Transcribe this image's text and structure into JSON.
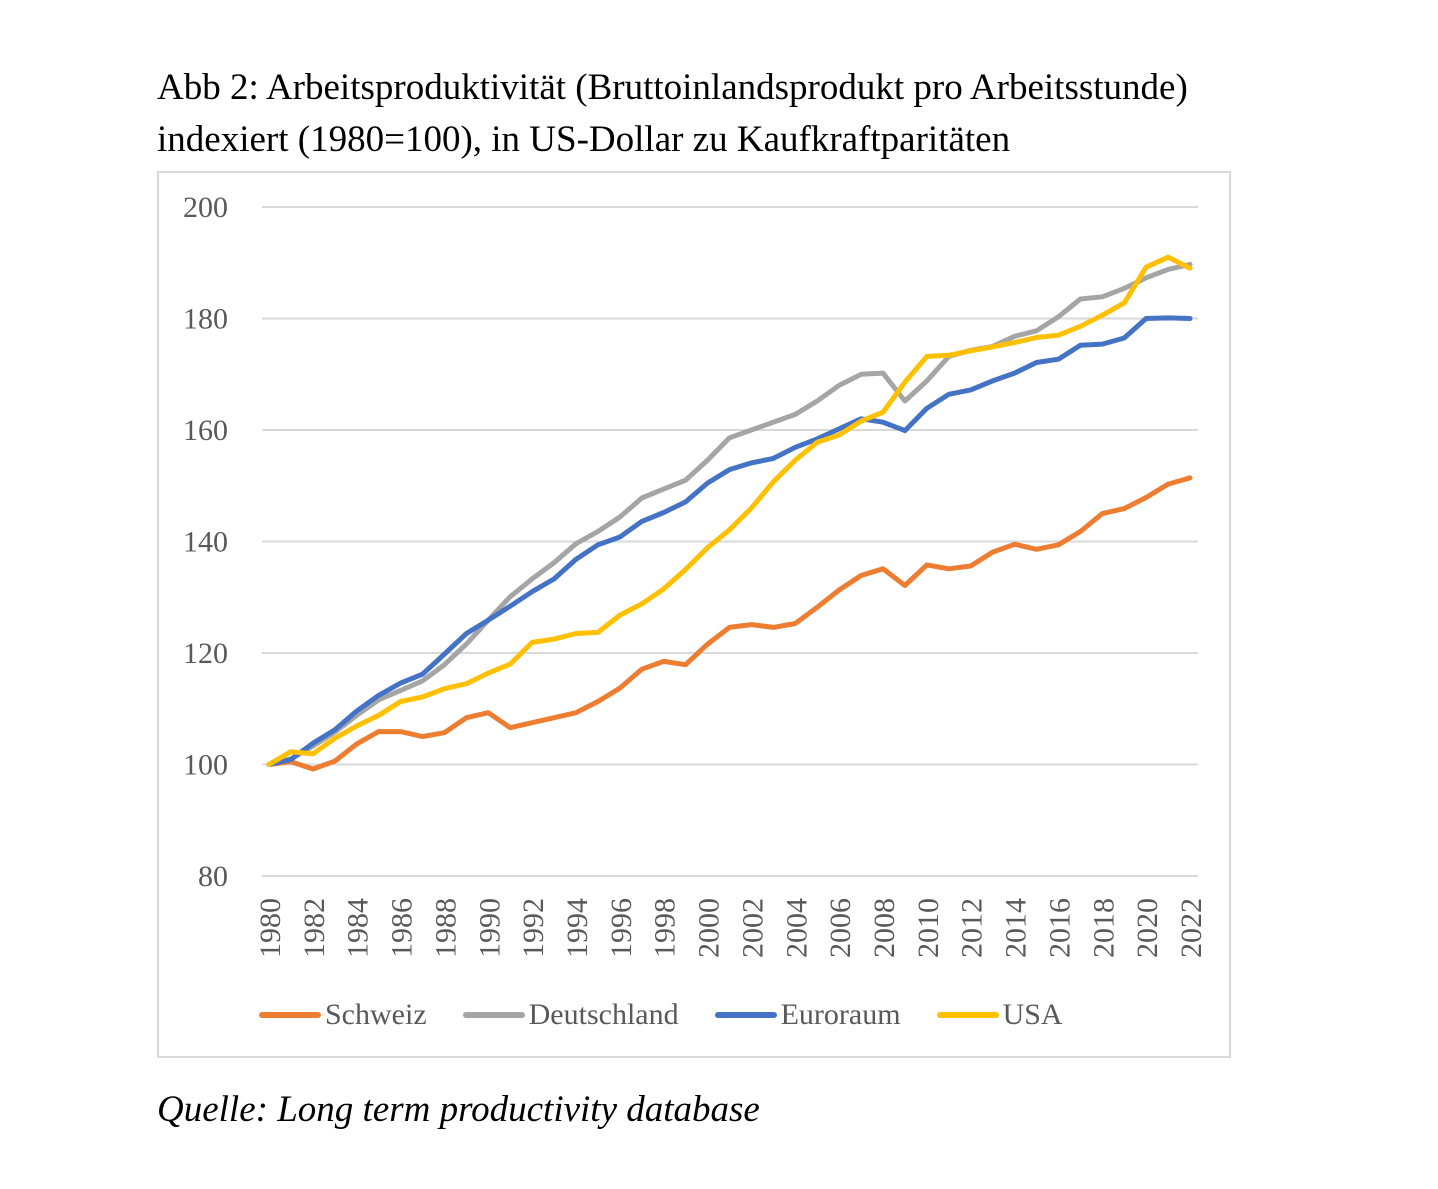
{
  "title_line1": "Abb 2: Arbeitsproduktivität (Bruttoinlandsprodukt pro Arbeitsstunde)",
  "title_line2": "indexiert (1980=100), in US-Dollar zu Kaufkraftparitäten",
  "source": "Quelle: Long term productivity database",
  "chart_data": {
    "type": "line",
    "title": "Abb 2: Arbeitsproduktivität (Bruttoinlandsprodukt pro Arbeitsstunde) indexiert (1980=100), in US-Dollar zu Kaufkraftparitäten",
    "xlabel": "",
    "ylabel": "",
    "ylim": [
      80,
      200
    ],
    "yticks": [
      80,
      100,
      120,
      140,
      160,
      180,
      200
    ],
    "grid": true,
    "legend_position": "bottom",
    "x": [
      1980,
      1981,
      1982,
      1983,
      1984,
      1985,
      1986,
      1987,
      1988,
      1989,
      1990,
      1991,
      1992,
      1993,
      1994,
      1995,
      1996,
      1997,
      1998,
      1999,
      2000,
      2001,
      2002,
      2003,
      2004,
      2005,
      2006,
      2007,
      2008,
      2009,
      2010,
      2011,
      2012,
      2013,
      2014,
      2015,
      2016,
      2017,
      2018,
      2019,
      2020,
      2021,
      2022
    ],
    "xtick_labels": [
      "1980",
      "1982",
      "1984",
      "1986",
      "1988",
      "1990",
      "1992",
      "1994",
      "1996",
      "1998",
      "2000",
      "2002",
      "2004",
      "2006",
      "2008",
      "2010",
      "2012",
      "2014",
      "2016",
      "2018",
      "2020",
      "2022"
    ],
    "series": [
      {
        "name": "Schweiz",
        "color": "#ED7D31",
        "values": [
          100,
          100.5,
          99.2,
          100.6,
          103.7,
          105.9,
          105.9,
          105.0,
          105.7,
          108.4,
          109.3,
          106.6,
          107.5,
          108.4,
          109.3,
          111.3,
          113.7,
          117.1,
          118.5,
          117.9,
          121.6,
          124.6,
          125.1,
          124.6,
          125.3,
          128.2,
          131.3,
          133.9,
          135.1,
          132.1,
          135.8,
          135.1,
          135.6,
          138.1,
          139.5,
          138.6,
          139.4,
          141.8,
          145.0,
          145.9,
          147.9,
          150.3,
          151.4
        ]
      },
      {
        "name": "Deutschland",
        "color": "#A5A5A5",
        "values": [
          100,
          101.0,
          103.3,
          105.8,
          108.8,
          111.6,
          113.3,
          115.0,
          117.9,
          121.6,
          125.9,
          130.1,
          133.3,
          136.2,
          139.6,
          141.8,
          144.4,
          147.8,
          149.4,
          151.0,
          154.6,
          158.6,
          160.0,
          161.4,
          162.8,
          165.2,
          168.0,
          170.0,
          170.2,
          165.2,
          168.8,
          173.2,
          174.3,
          175.0,
          176.8,
          177.8,
          180.3,
          183.5,
          183.9,
          185.4,
          187.3,
          188.8,
          189.7
        ]
      },
      {
        "name": "Euroraum",
        "color": "#4472C4",
        "values": [
          100,
          100.9,
          103.8,
          106.2,
          109.6,
          112.4,
          114.6,
          116.2,
          119.8,
          123.5,
          125.9,
          128.4,
          131.0,
          133.3,
          136.8,
          139.4,
          140.8,
          143.6,
          145.2,
          147.1,
          150.5,
          152.9,
          154.1,
          154.9,
          156.9,
          158.4,
          160.2,
          162.0,
          161.4,
          159.9,
          163.9,
          166.4,
          167.2,
          168.8,
          170.2,
          172.1,
          172.7,
          175.2,
          175.4,
          176.5,
          180.0,
          180.1,
          180.0
        ]
      },
      {
        "name": "USA",
        "color": "#FFC000",
        "values": [
          100,
          102.3,
          101.9,
          104.7,
          106.9,
          108.8,
          111.3,
          112.1,
          113.6,
          114.5,
          116.4,
          118.0,
          121.9,
          122.5,
          123.5,
          123.7,
          126.8,
          128.8,
          131.5,
          135.0,
          138.9,
          142.1,
          146.0,
          150.7,
          154.6,
          157.8,
          159.1,
          161.6,
          163.2,
          168.6,
          173.2,
          173.4,
          174.2,
          174.9,
          175.7,
          176.6,
          177.0,
          178.6,
          180.6,
          182.8,
          189.2,
          191.0,
          189.0
        ]
      }
    ]
  }
}
